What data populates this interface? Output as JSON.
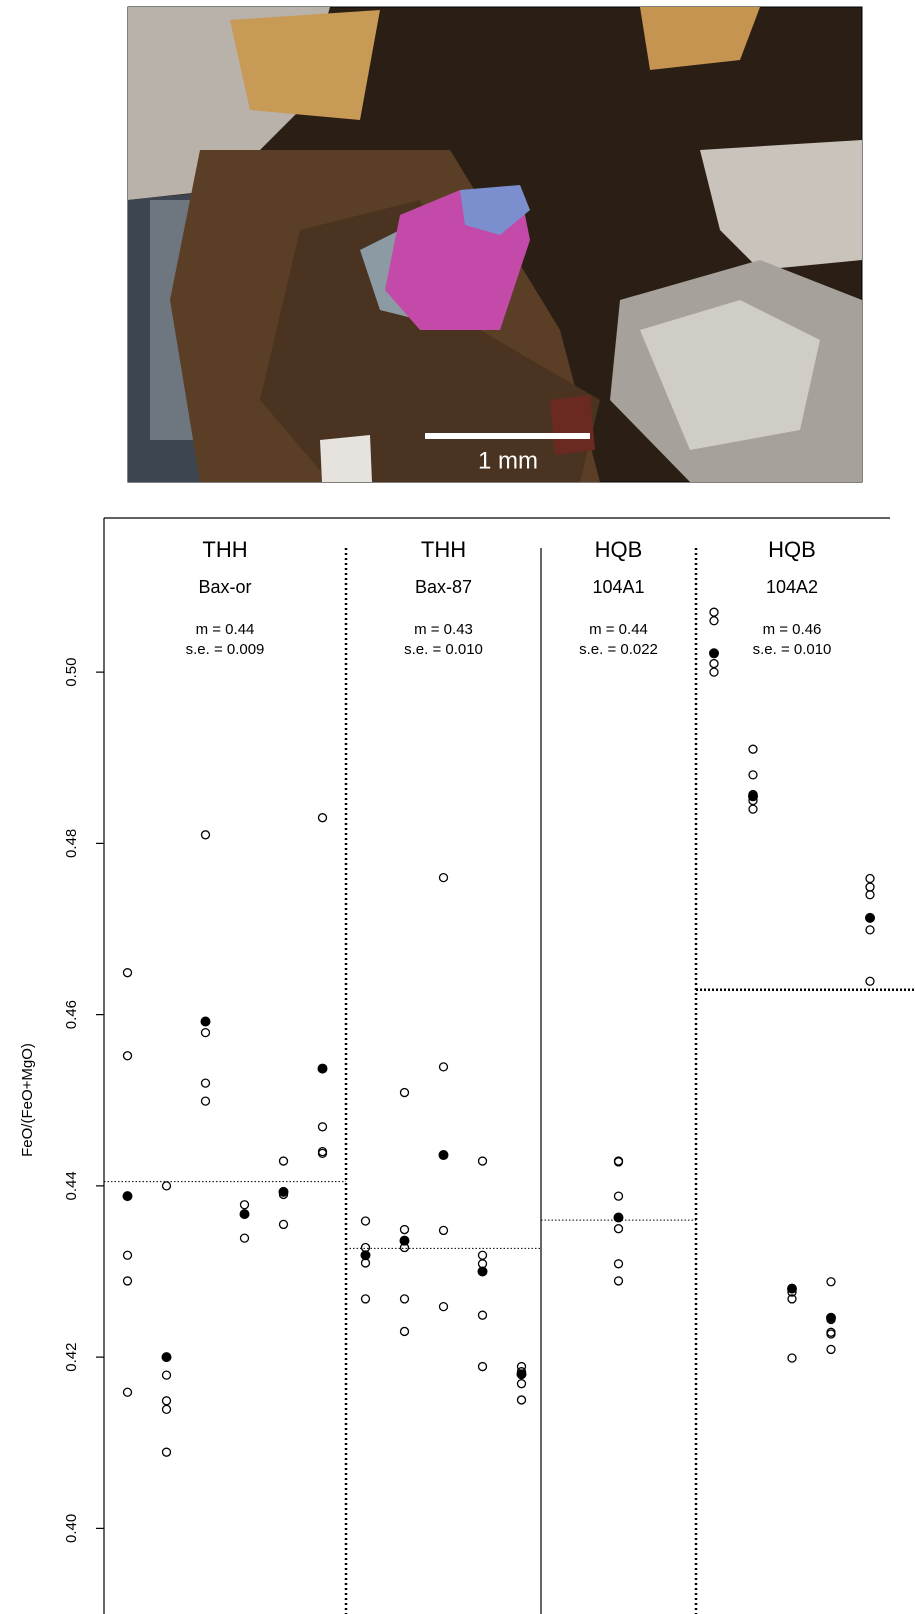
{
  "figure_image": {
    "scale_bar_label": "1 mm"
  },
  "chart_data": {
    "type": "strip",
    "y_label": "FeO/(FeO+MgO)",
    "ylim": [
      0.39,
      0.518
    ],
    "yticks": [
      {
        "value": 0.4,
        "label": "0.40"
      },
      0.42,
      0.44,
      0.46,
      0.48,
      {
        "value": 0.5,
        "label": "0.50"
      }
    ],
    "open_color": "#000000",
    "mean_color": "#000000",
    "groups": [
      {
        "site": "THH",
        "sample": "Bax-or",
        "mean_label": "m = 0.44",
        "se_label": "s.e. = 0.009",
        "mean_line": 0.4405,
        "mean_line_style": "thin",
        "columns": [
          {
            "values": [
              0.4649,
              0.4552,
              0.4319,
              0.4289,
              0.4159
            ],
            "mean": 0.4388
          },
          {
            "values": [
              0.44,
              0.4179,
              0.4149,
              0.4139,
              0.4089
            ],
            "mean": 0.42
          },
          {
            "values": [
              0.481,
              0.4579,
              0.452,
              0.4499
            ],
            "mean": 0.4592
          },
          {
            "values": [
              0.4378,
              0.4339
            ],
            "mean": 0.4367
          },
          {
            "values": [
              0.4429,
              0.439,
              0.4355
            ],
            "mean": 0.4393
          },
          {
            "values": [
              0.483,
              0.4469,
              0.444,
              0.4438
            ],
            "mean": 0.4537
          }
        ]
      },
      {
        "site": "THH",
        "sample": "Bax-87",
        "mean_label": "m = 0.43",
        "se_label": "s.e. = 0.010",
        "mean_line": 0.4327,
        "mean_line_style": "thin",
        "columns": [
          {
            "values": [
              0.4359,
              0.4328,
              0.431,
              0.4268
            ],
            "mean": 0.4319
          },
          {
            "values": [
              0.4509,
              0.4349,
              0.4328,
              0.4268,
              0.423
            ],
            "mean": 0.4336
          },
          {
            "values": [
              0.476,
              0.4539,
              0.4348,
              0.4259
            ],
            "mean": 0.4436
          },
          {
            "values": [
              0.4429,
              0.4319,
              0.4309,
              0.4249,
              0.4189
            ],
            "mean": 0.43
          },
          {
            "values": [
              0.4189,
              0.4183,
              0.4169,
              0.415
            ],
            "mean": 0.418
          }
        ]
      },
      {
        "site": "HQB",
        "sample": "104A1",
        "mean_label": "m = 0.44",
        "se_label": "s.e. = 0.022",
        "mean_line": 0.436,
        "mean_line_style": "thin",
        "columns": [
          {
            "values": [
              0.4429,
              0.4428,
              0.4388,
              0.435,
              0.4309,
              0.4289
            ],
            "mean": 0.4363
          }
        ]
      },
      {
        "site": "HQB",
        "sample": "104A2",
        "mean_label": "m = 0.46",
        "se_label": "s.e. = 0.010",
        "mean_line": 0.4629,
        "mean_line_style": "thick",
        "columns": [
          {
            "values": [
              0.507,
              0.506,
              0.501,
              0.5
            ],
            "mean": 0.5022
          },
          {
            "values": [
              0.491,
              0.488,
              0.4857,
              0.485,
              0.484
            ],
            "mean": 0.4855
          },
          {
            "values": [
              0.4276,
              0.4268,
              0.4199
            ],
            "mean": 0.428
          },
          {
            "values": [
              0.4288,
              0.4244,
              0.4229,
              0.4227,
              0.4209
            ],
            "mean": 0.4246
          },
          {
            "values": [
              0.4759,
              0.4749,
              0.474,
              0.4699,
              0.4639
            ],
            "mean": 0.4713
          }
        ]
      }
    ]
  }
}
